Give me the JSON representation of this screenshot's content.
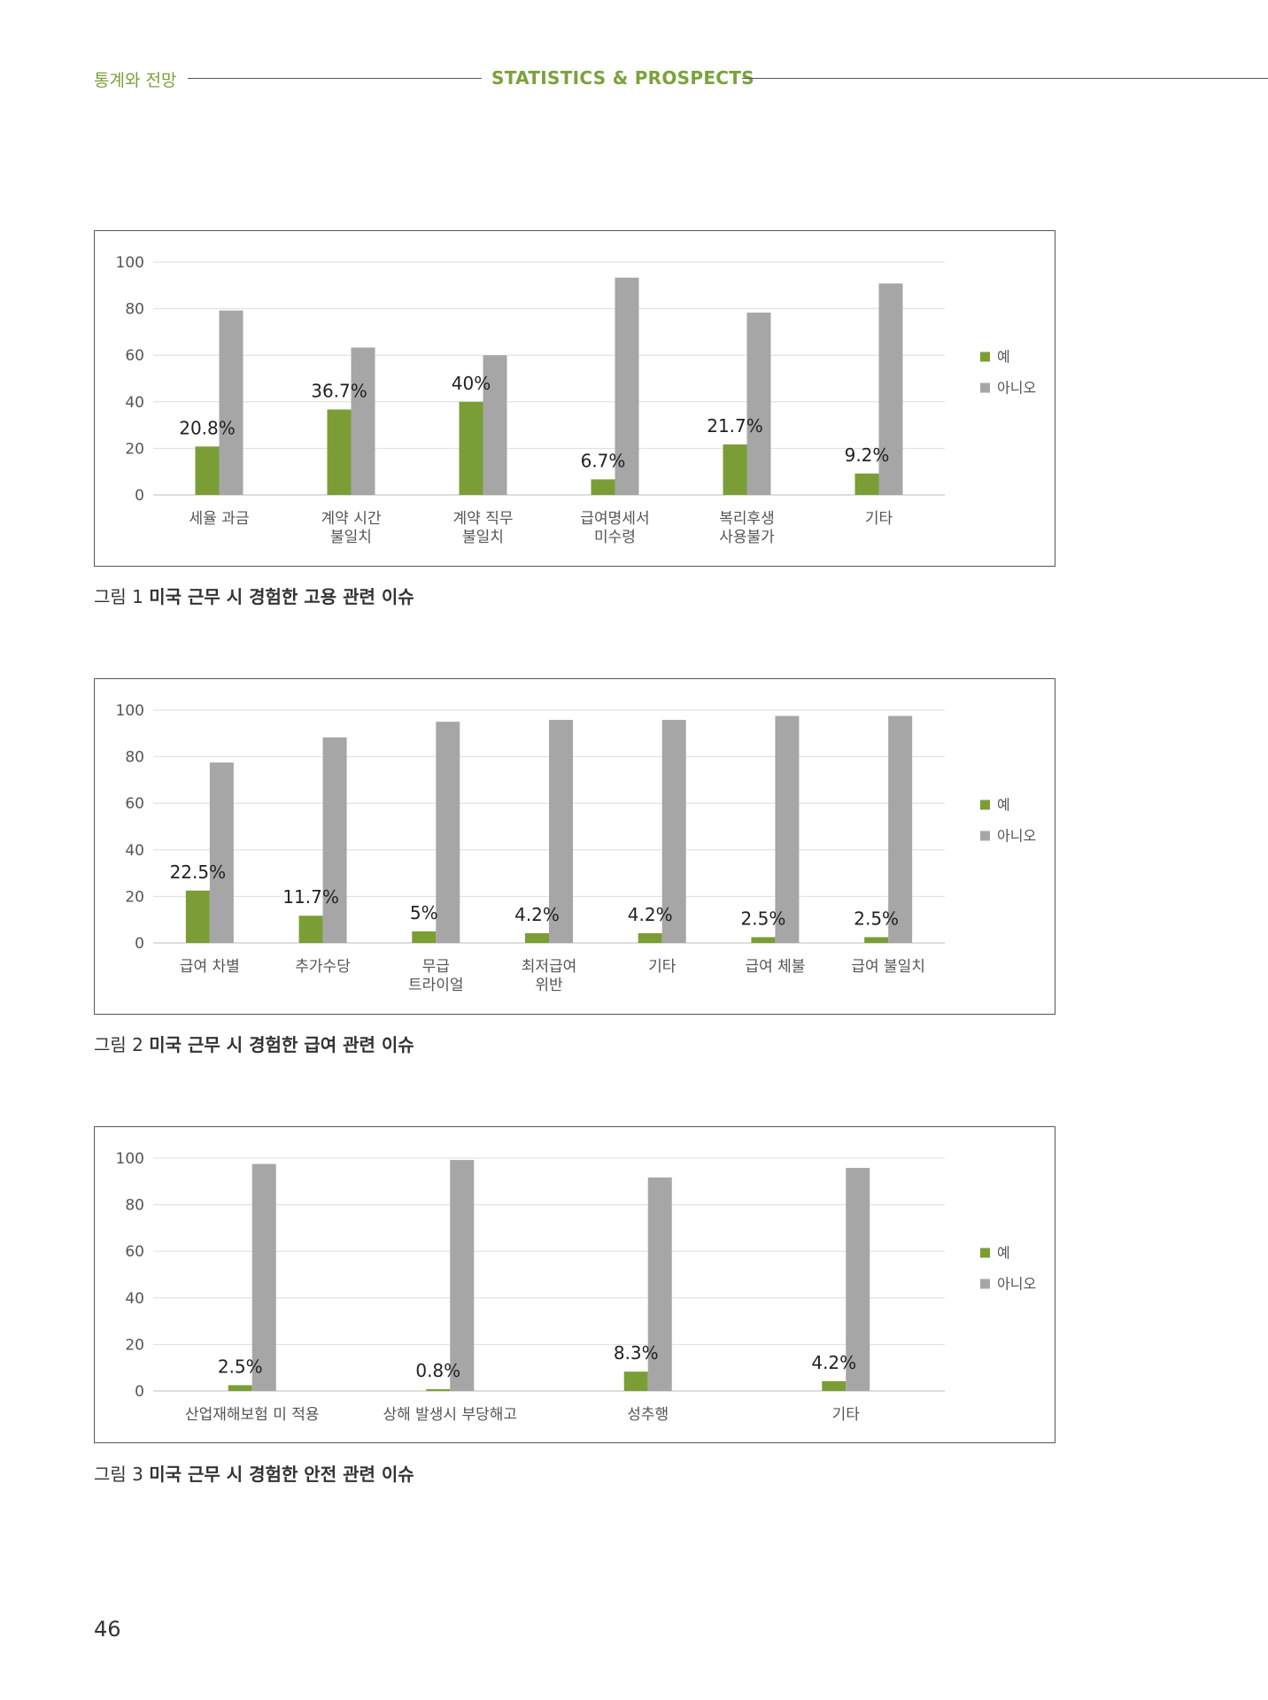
{
  "header": {
    "left_title": "통계와 전망",
    "center_title": "STATISTICS & PROSPECTS"
  },
  "colors": {
    "yes": "#7a9e35",
    "no": "#a7a6a7",
    "accent": "#7aa23a"
  },
  "chart_data": [
    {
      "type": "bar",
      "categories": [
        [
          "세율 과금"
        ],
        [
          "계약 시간",
          "불일치"
        ],
        [
          "계약 직무",
          "불일치"
        ],
        [
          "급여명세서",
          "미수령"
        ],
        [
          "복리후생",
          "사용불가"
        ],
        [
          "기타"
        ]
      ],
      "series": [
        {
          "name": "예",
          "values": [
            20.8,
            36.7,
            40,
            6.7,
            21.7,
            9.2
          ]
        },
        {
          "name": "아니오",
          "values": [
            79.2,
            63.3,
            60,
            93.3,
            78.3,
            90.8
          ]
        }
      ],
      "data_labels": [
        "20.8%",
        "36.7%",
        "40%",
        "6.7%",
        "21.7%",
        "9.2%"
      ],
      "yticks": [
        "0",
        "20",
        "40",
        "60",
        "80",
        "100"
      ],
      "ylim": [
        0,
        100
      ],
      "grid": true,
      "legend": "right",
      "caption_prefix": "그림 1",
      "caption_text": "미국 근무 시 경험한 고용 관련 이슈"
    },
    {
      "type": "bar",
      "categories": [
        [
          "급여 차별"
        ],
        [
          "추가수당"
        ],
        [
          "무급",
          "트라이얼"
        ],
        [
          "최저급여",
          "위반"
        ],
        [
          "기타"
        ],
        [
          "급여 체불"
        ],
        [
          "급여 불일치"
        ]
      ],
      "series": [
        {
          "name": "예",
          "values": [
            22.5,
            11.7,
            5,
            4.2,
            4.2,
            2.5,
            2.5
          ]
        },
        {
          "name": "아니오",
          "values": [
            77.5,
            88.3,
            95,
            95.8,
            95.8,
            97.5,
            97.5
          ]
        }
      ],
      "data_labels": [
        "22.5%",
        "11.7%",
        "5%",
        "4.2%",
        "4.2%",
        "2.5%",
        "2.5%"
      ],
      "yticks": [
        "0",
        "20",
        "40",
        "60",
        "80",
        "100"
      ],
      "ylim": [
        0,
        100
      ],
      "grid": true,
      "legend": "right",
      "caption_prefix": "그림 2",
      "caption_text": "미국 근무 시 경험한 급여 관련 이슈"
    },
    {
      "type": "bar",
      "categories": [
        [
          "산업재해보험 미 적용"
        ],
        [
          "상해 발생시 부당해고"
        ],
        [
          "성추행"
        ],
        [
          "기타"
        ]
      ],
      "series": [
        {
          "name": "예",
          "values": [
            2.5,
            0.8,
            8.3,
            4.2
          ]
        },
        {
          "name": "아니오",
          "values": [
            97.5,
            99.2,
            91.7,
            95.8
          ]
        }
      ],
      "data_labels": [
        "2.5%",
        "0.8%",
        "8.3%",
        "4.2%"
      ],
      "yticks": [
        "0",
        "20",
        "40",
        "60",
        "80",
        "100"
      ],
      "ylim": [
        0,
        100
      ],
      "grid": true,
      "legend": "right",
      "caption_prefix": "그림 3",
      "caption_text": "미국 근무 시 경험한 안전 관련 이슈"
    }
  ],
  "page_number": "46"
}
